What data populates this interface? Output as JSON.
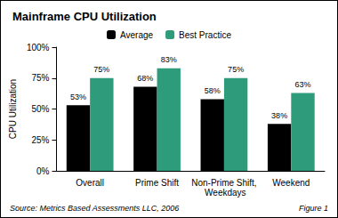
{
  "chart_data": {
    "type": "bar",
    "title": "Mainframe CPU Utilization",
    "y_label": "CPU Utilization",
    "categories": [
      "Overall",
      "Prime Shift",
      "Non-Prime Shift, Weekdays",
      "Weekend"
    ],
    "series": [
      {
        "name": "Average",
        "color": "#000000",
        "values": [
          53,
          68,
          58,
          38
        ],
        "value_labels": [
          "53%",
          "68%",
          "58%",
          "38%"
        ]
      },
      {
        "name": "Best Practice",
        "color": "#2e9b7b",
        "values": [
          75,
          83,
          75,
          63
        ],
        "value_labels": [
          "75%",
          "83%",
          "75%",
          "63%"
        ]
      }
    ],
    "ylim": [
      0,
      100
    ],
    "yticks": [
      {
        "value": 0,
        "label": "0%"
      },
      {
        "value": 25,
        "label": "25%"
      },
      {
        "value": 50,
        "label": "50%"
      },
      {
        "value": 75,
        "label": "75%"
      },
      {
        "value": 100,
        "label": "100%"
      }
    ],
    "grid": false,
    "legend": "top",
    "data_labels": true,
    "annotations": [
      "Source: Metrics Based Assessments LLC, 2006",
      "Figure 1"
    ]
  }
}
